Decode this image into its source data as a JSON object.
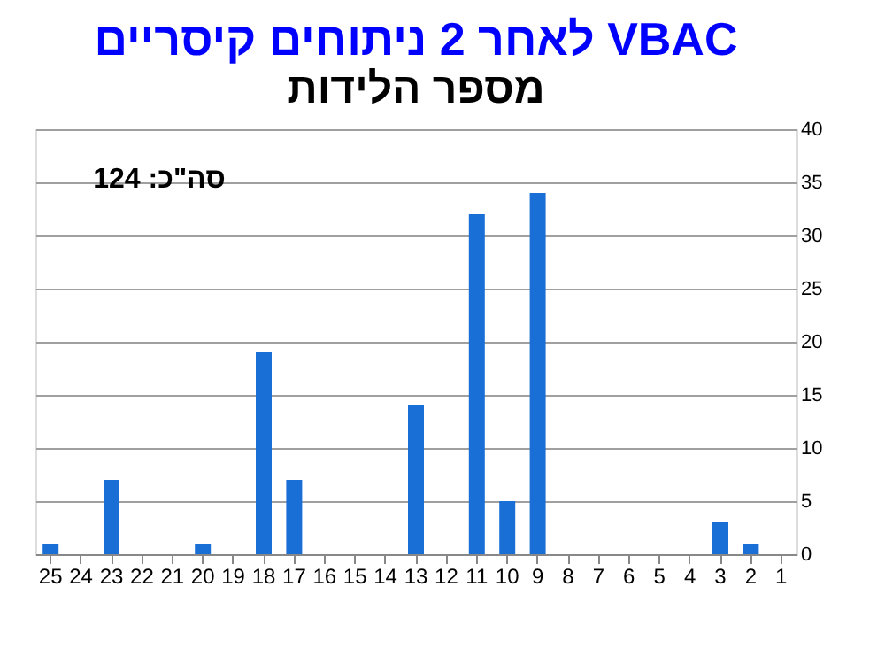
{
  "chart_data": {
    "type": "bar",
    "title": "לאחר 2 ניתוחים קיסריים VBAC",
    "subtitle": "מספר הלידות",
    "categories": [
      "25",
      "24",
      "23",
      "22",
      "21",
      "20",
      "19",
      "18",
      "17",
      "16",
      "15",
      "14",
      "13",
      "12",
      "11",
      "10",
      "9",
      "8",
      "7",
      "6",
      "5",
      "4",
      "3",
      "2",
      "1"
    ],
    "values": [
      1,
      0,
      7,
      0,
      0,
      1,
      0,
      19,
      7,
      0,
      0,
      0,
      14,
      0,
      32,
      5,
      34,
      0,
      0,
      0,
      0,
      0,
      3,
      1,
      0
    ],
    "color": "#1a6fd6",
    "ylim": [
      0,
      40
    ],
    "yticks": [
      0,
      5,
      10,
      15,
      20,
      25,
      30,
      35,
      40
    ],
    "grid": "y",
    "annotations": [
      "סה\"כ:  124"
    ]
  }
}
